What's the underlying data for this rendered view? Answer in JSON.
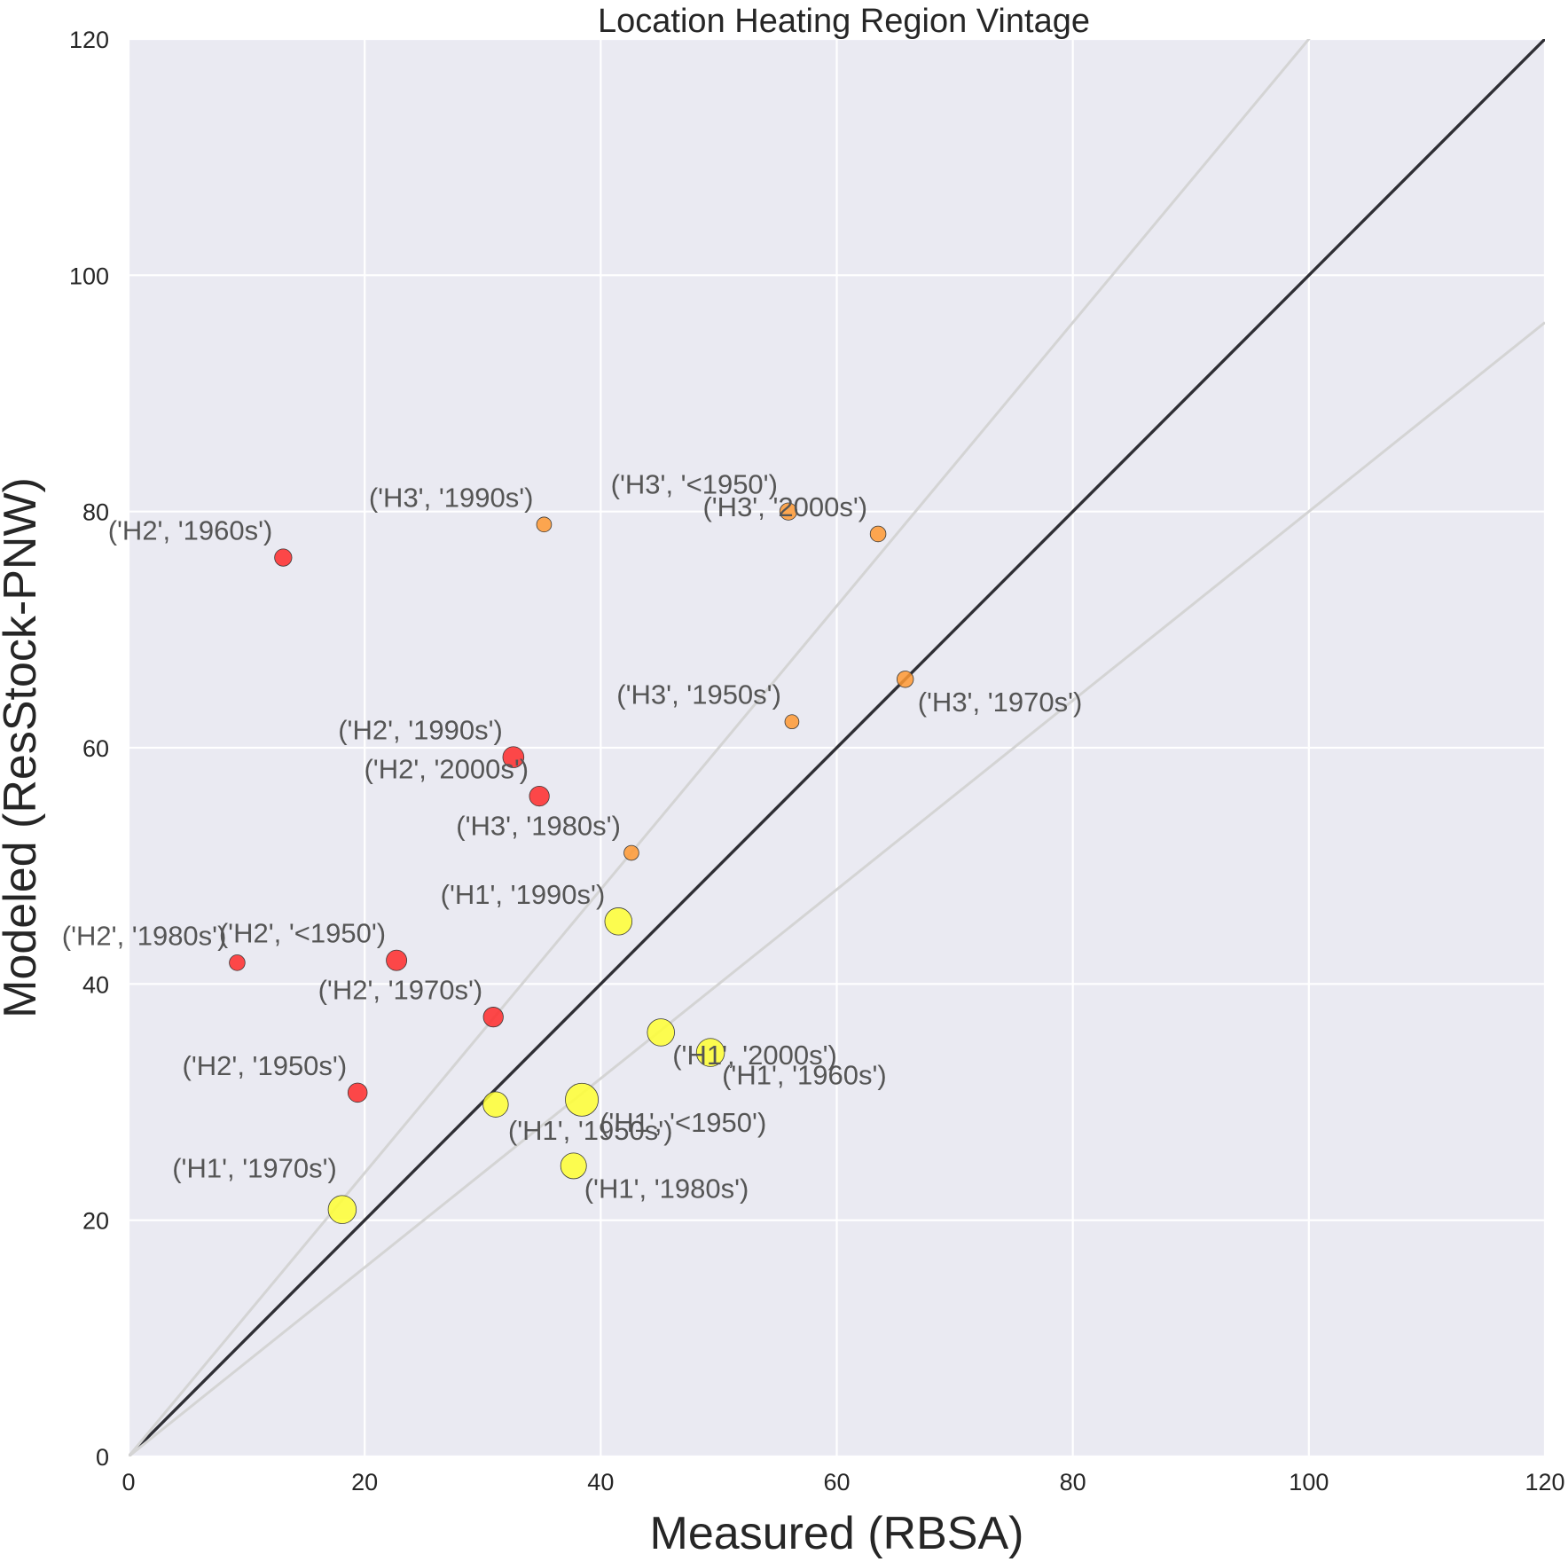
{
  "chart_data": {
    "type": "scatter",
    "title": "Location Heating Region Vintage",
    "xlabel": "Measured (RBSA)",
    "ylabel": "Modeled (ResStock-PNW)",
    "xlim": [
      0,
      120
    ],
    "ylim": [
      0,
      120
    ],
    "xticks": [
      0,
      20,
      40,
      60,
      80,
      100,
      120
    ],
    "yticks": [
      0,
      20,
      40,
      60,
      80,
      100,
      120
    ],
    "grid": true,
    "legend": "none",
    "colors": {
      "background": "#eaeaf2",
      "grid": "#ffffff",
      "identity_line": "#2f2f35",
      "band_lines": "#d4d4d4",
      "H1": "#ffff33",
      "H2": "#ff2a2a",
      "H3": "#ff9933"
    },
    "reference_lines": [
      {
        "name": "identity",
        "slope": 1.0
      },
      {
        "name": "upper-band",
        "slope": 1.2
      },
      {
        "name": "lower-band",
        "slope": 0.8
      }
    ],
    "points": [
      {
        "label": "('H1', '1970s')",
        "group": "H1",
        "x": 18.1,
        "y": 20.9,
        "size": 3.2,
        "anchor": "left",
        "dx": -6,
        "dy": -36
      },
      {
        "label": "('H1', '1950s')",
        "group": "H1",
        "x": 31.1,
        "y": 29.8,
        "size": 2.6,
        "anchor": "start",
        "dx": 14,
        "dy": 40
      },
      {
        "label": "('H1', '<1950')",
        "group": "H1",
        "x": 38.4,
        "y": 30.2,
        "size": 4.4,
        "anchor": "start",
        "dx": 20,
        "dy": 36
      },
      {
        "label": "('H1', '1980s')",
        "group": "H1",
        "x": 37.7,
        "y": 24.6,
        "size": 2.7,
        "anchor": "start",
        "dx": 12,
        "dy": 36
      },
      {
        "label": "('H1', '1990s')",
        "group": "H1",
        "x": 41.5,
        "y": 45.3,
        "size": 3.0,
        "anchor": "end",
        "dx": -15,
        "dy": -20
      },
      {
        "label": "('H1', '2000s')",
        "group": "H1",
        "x": 45.1,
        "y": 35.9,
        "size": 3.0,
        "anchor": "start",
        "dx": 13,
        "dy": 36
      },
      {
        "label": "('H1', '1960s')",
        "group": "H1",
        "x": 49.3,
        "y": 34.2,
        "size": 3.2,
        "anchor": "start",
        "dx": 13,
        "dy": 36
      },
      {
        "label": "('H2', '1980s')",
        "group": "H2",
        "x": 9.2,
        "y": 41.8,
        "size": 1.0,
        "anchor": "end",
        "dx": -12,
        "dy": -20
      },
      {
        "label": "('H2', '1960s')",
        "group": "H2",
        "x": 13.1,
        "y": 76.1,
        "size": 1.2,
        "anchor": "end",
        "dx": -12,
        "dy": -20
      },
      {
        "label": "('H2', '1950s')",
        "group": "H2",
        "x": 19.4,
        "y": 30.8,
        "size": 1.5,
        "anchor": "end",
        "dx": -12,
        "dy": -20
      },
      {
        "label": "('H2', '<1950')",
        "group": "H2",
        "x": 22.7,
        "y": 42.0,
        "size": 1.7,
        "anchor": "end",
        "dx": -12,
        "dy": -20
      },
      {
        "label": "('H2', '1970s')",
        "group": "H2",
        "x": 30.9,
        "y": 37.2,
        "size": 1.6,
        "anchor": "end",
        "dx": -12,
        "dy": -20
      },
      {
        "label": "('H2', '1990s')",
        "group": "H2",
        "x": 32.6,
        "y": 59.2,
        "size": 1.8,
        "anchor": "end",
        "dx": -12,
        "dy": -20
      },
      {
        "label": "('H2', '2000s')",
        "group": "H2",
        "x": 34.8,
        "y": 55.9,
        "size": 1.6,
        "anchor": "end",
        "dx": -12,
        "dy": -20
      },
      {
        "label": "('H3', '1990s')",
        "group": "H3",
        "x": 35.2,
        "y": 78.9,
        "size": 0.9,
        "anchor": "end",
        "dx": -12,
        "dy": -20
      },
      {
        "label": "('H3', '1980s')",
        "group": "H3",
        "x": 42.6,
        "y": 51.1,
        "size": 0.9,
        "anchor": "end",
        "dx": -12,
        "dy": -20
      },
      {
        "label": "('H3', '<1950')",
        "group": "H3",
        "x": 55.9,
        "y": 80.0,
        "size": 1.2,
        "anchor": "end",
        "dx": -12,
        "dy": -20
      },
      {
        "label": "('H3', '1950s')",
        "group": "H3",
        "x": 56.2,
        "y": 62.2,
        "size": 0.8,
        "anchor": "end",
        "dx": -12,
        "dy": -20
      },
      {
        "label": "('H3', '2000s')",
        "group": "H3",
        "x": 63.5,
        "y": 78.1,
        "size": 1.0,
        "anchor": "end",
        "dx": -12,
        "dy": -20
      },
      {
        "label": "('H3', '1970s')",
        "group": "H3",
        "x": 65.8,
        "y": 65.8,
        "size": 1.1,
        "anchor": "start",
        "dx": 14,
        "dy": 36
      }
    ]
  }
}
